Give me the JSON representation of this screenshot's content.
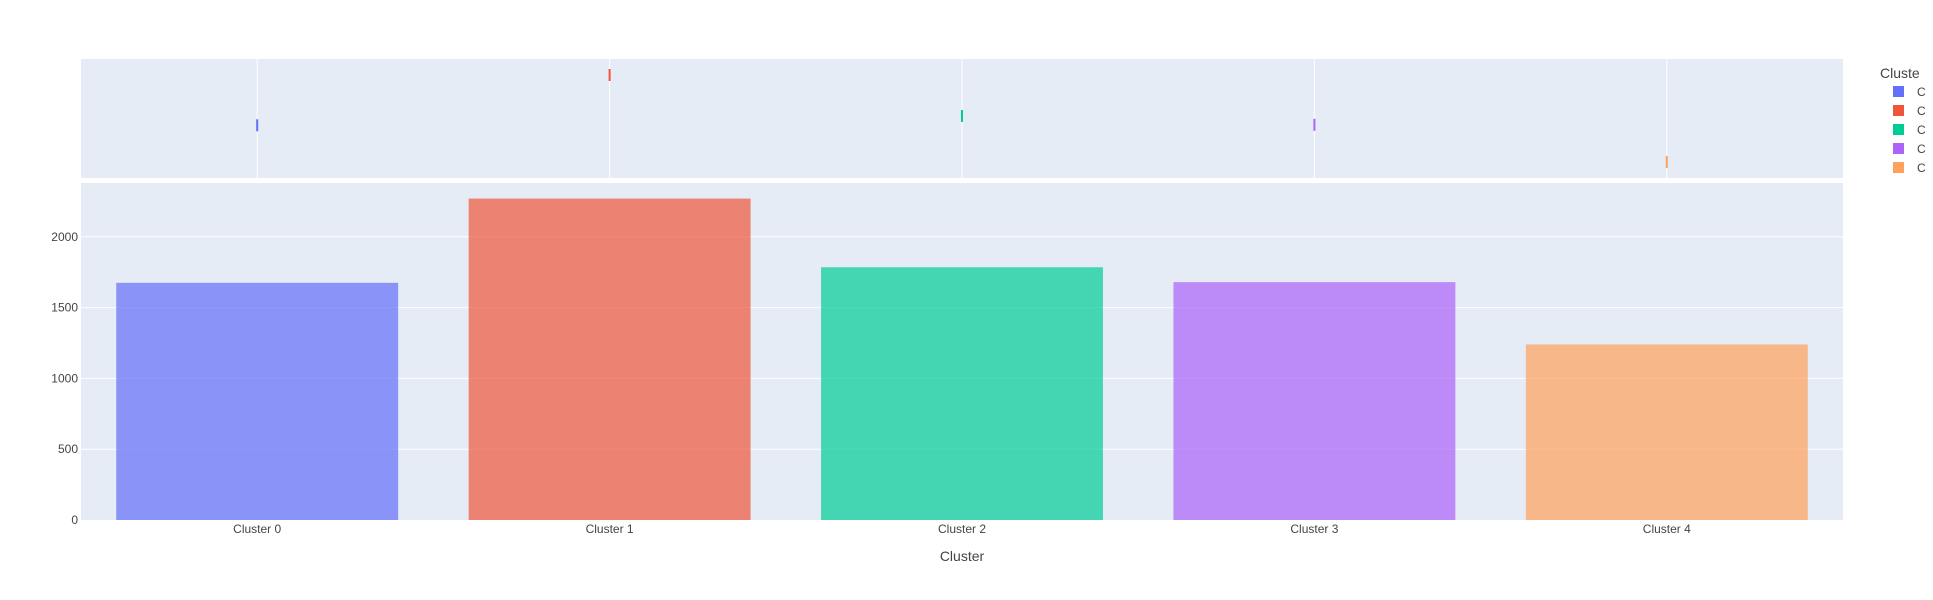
{
  "chart_data": {
    "type": "bar",
    "marginal": "rug",
    "categories": [
      "Cluster 0",
      "Cluster 1",
      "Cluster 2",
      "Cluster 3",
      "Cluster 4"
    ],
    "values": [
      1675,
      2270,
      1785,
      1680,
      1240
    ],
    "colors": [
      "#636efa",
      "#EF553B",
      "#00cc96",
      "#ab63fa",
      "#FFA15A"
    ],
    "xlabel": "Cluster",
    "ylabel": "",
    "ylim": [
      0,
      2380
    ],
    "yticks": [
      0,
      500,
      1000,
      1500,
      2000
    ],
    "grid": true,
    "legend": {
      "title": "Cluste",
      "placement": "top-right",
      "entries": [
        "C",
        "C",
        "C",
        "C",
        "C"
      ]
    }
  }
}
